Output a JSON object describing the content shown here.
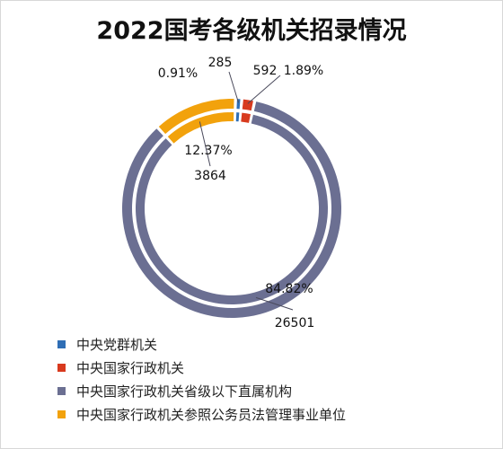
{
  "chart_data": {
    "type": "pie",
    "variant": "double-ring-donut",
    "title": "2022国考各级机关招录情况",
    "categories": [
      "中央党群机关",
      "中央国家行政机关",
      "中央国家行政机关省级以下直属机构",
      "中央国家行政机关参照公务员法管理事业单位"
    ],
    "values": [
      285,
      592,
      26501,
      3864
    ],
    "percent_labels": [
      "0.91%",
      "1.89%",
      "84.82%",
      "12.37%"
    ],
    "value_labels": [
      "285",
      "592",
      "26501",
      "3864"
    ],
    "colors": [
      "#2f6eb5",
      "#d83a1e",
      "#6b6f92",
      "#f2a20c"
    ],
    "legend_position": "bottom-left"
  }
}
